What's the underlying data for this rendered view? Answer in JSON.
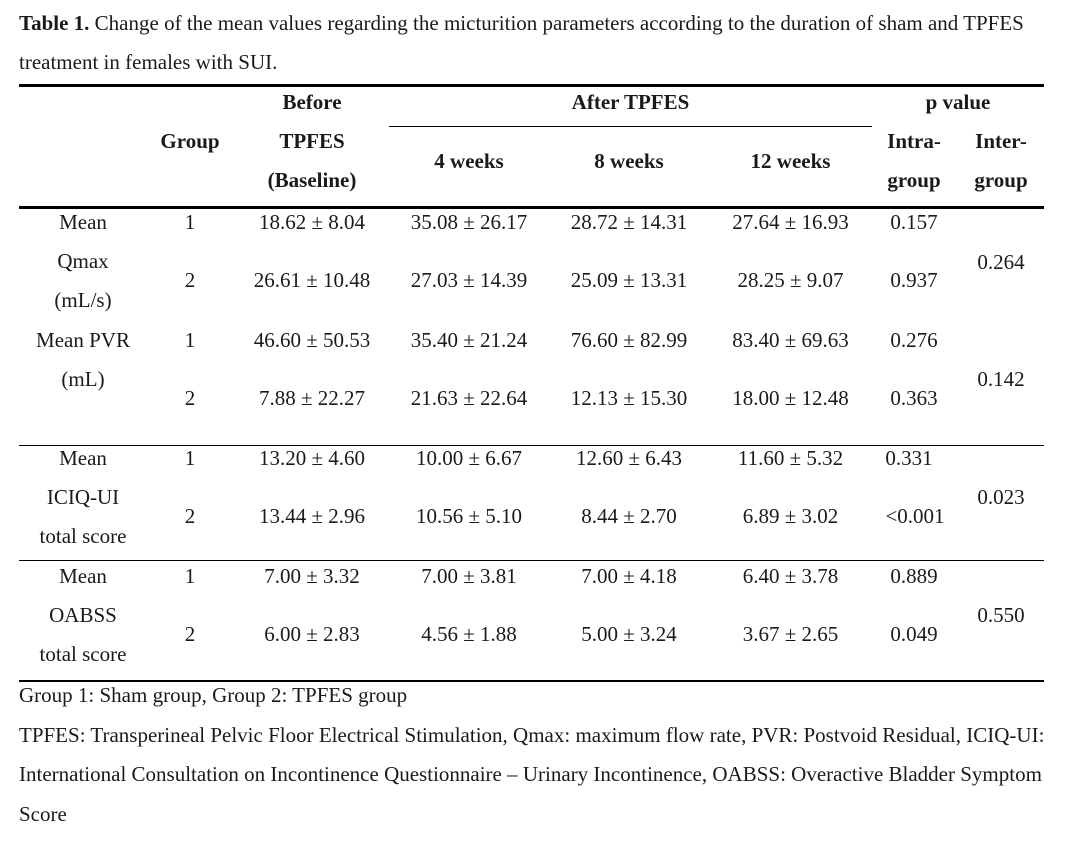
{
  "caption": {
    "label": "Table 1.",
    "text": " Change of the mean values regarding the micturition parameters according to the duration of sham and TPFES treatment in females with SUI."
  },
  "header": {
    "group": "Group",
    "before_l1": "Before",
    "before_l2": "TPFES",
    "before_l3": "(Baseline)",
    "after": "After TPFES",
    "w4": "4 weeks",
    "w8": "8 weeks",
    "w12": "12 weeks",
    "pvalue": "p value",
    "intra_l1": "Intra-",
    "intra_l2": "group",
    "inter_l1": "Inter-",
    "inter_l2": "group"
  },
  "rows": [
    {
      "label": [
        "Mean",
        "Qmax",
        "(mL/s)"
      ],
      "g1": [
        "1",
        "18.62 ± 8.04",
        "35.08 ± 26.17",
        "28.72 ± 14.31",
        "27.64 ± 16.93",
        "0.157"
      ],
      "g2": [
        "2",
        "26.61 ± 10.48",
        "27.03 ± 14.39",
        "25.09 ± 13.31",
        "28.25 ± 9.07",
        "0.937"
      ],
      "inter": "0.264"
    },
    {
      "label": [
        "Mean PVR",
        "(mL)"
      ],
      "g1": [
        "1",
        "46.60 ± 50.53",
        "35.40 ± 21.24",
        "76.60 ± 82.99",
        "83.40 ± 69.63",
        "0.276"
      ],
      "g2": [
        "2",
        "7.88 ± 22.27",
        "21.63 ± 22.64",
        "12.13 ± 15.30",
        "18.00 ± 12.48",
        "0.363"
      ],
      "inter": "0.142"
    },
    {
      "label": [
        "Mean",
        "ICIQ-UI",
        "total score"
      ],
      "g1": [
        "1",
        "13.20 ± 4.60",
        "10.00 ± 6.67",
        "12.60 ± 6.43",
        "11.60 ± 5.32",
        "0.331"
      ],
      "g2": [
        "2",
        "13.44 ± 2.96",
        "10.56 ± 5.10",
        "8.44 ± 2.70",
        "6.89 ± 3.02",
        "<0.001"
      ],
      "inter": "0.023"
    },
    {
      "label": [
        "Mean",
        "OABSS",
        "total score"
      ],
      "g1": [
        "1",
        "7.00 ± 3.32",
        "7.00 ± 3.81",
        "7.00 ± 4.18",
        "6.40 ± 3.78",
        "0.889"
      ],
      "g2": [
        "2",
        "6.00 ± 2.83",
        "4.56 ± 1.88",
        "5.00 ± 3.24",
        "3.67 ± 2.65",
        "0.049"
      ],
      "inter": "0.550"
    }
  ],
  "notes": [
    "Group 1: Sham group, Group 2: TPFES group",
    "TPFES: Transperineal Pelvic Floor Electrical Stimulation, Qmax: maximum flow rate, PVR: Postvoid Residual, ICIQ-UI: International Consultation on Incontinence Questionnaire – Urinary Incontinence, OABSS: Overactive Bladder Symptom Score"
  ]
}
